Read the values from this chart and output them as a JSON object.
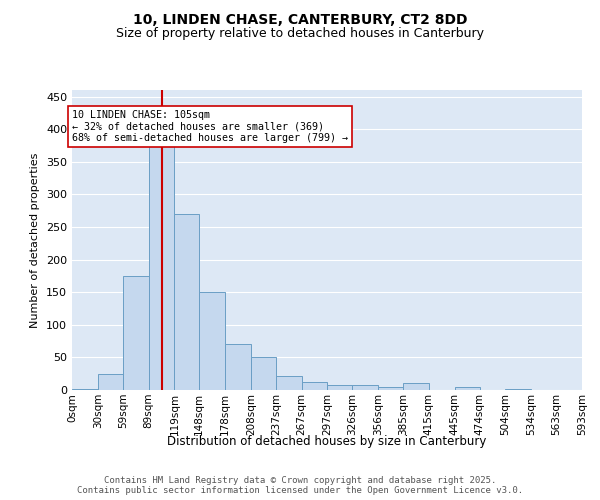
{
  "title1": "10, LINDEN CHASE, CANTERBURY, CT2 8DD",
  "title2": "Size of property relative to detached houses in Canterbury",
  "xlabel": "Distribution of detached houses by size in Canterbury",
  "ylabel": "Number of detached properties",
  "bin_edges": [
    0,
    30,
    59,
    89,
    119,
    148,
    178,
    208,
    237,
    267,
    297,
    326,
    356,
    385,
    415,
    445,
    474,
    504,
    534,
    563,
    593
  ],
  "heights": [
    2,
    25,
    175,
    380,
    270,
    150,
    70,
    50,
    22,
    12,
    8,
    8,
    5,
    10,
    0,
    4,
    0,
    2,
    0,
    0
  ],
  "bar_color": "#c5d8ee",
  "bar_edge_color": "#6a9ec5",
  "vline_x": 105,
  "vline_color": "#cc0000",
  "annotation_text": "10 LINDEN CHASE: 105sqm\n← 32% of detached houses are smaller (369)\n68% of semi-detached houses are larger (799) →",
  "ylim": [
    0,
    460
  ],
  "yticks": [
    0,
    50,
    100,
    150,
    200,
    250,
    300,
    350,
    400,
    450
  ],
  "plot_bg_color": "#dde8f5",
  "grid_color": "#ffffff",
  "footer_text": "Contains HM Land Registry data © Crown copyright and database right 2025.\nContains public sector information licensed under the Open Government Licence v3.0.",
  "x_tick_labels": [
    "0sqm",
    "30sqm",
    "59sqm",
    "89sqm",
    "119sqm",
    "148sqm",
    "178sqm",
    "208sqm",
    "237sqm",
    "267sqm",
    "297sqm",
    "326sqm",
    "356sqm",
    "385sqm",
    "415sqm",
    "445sqm",
    "474sqm",
    "504sqm",
    "534sqm",
    "563sqm",
    "593sqm"
  ]
}
